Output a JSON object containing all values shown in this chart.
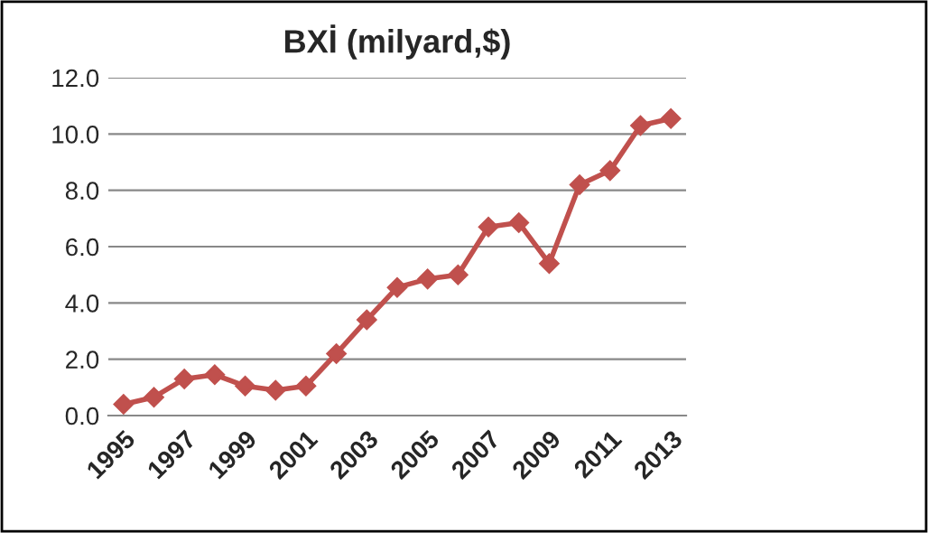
{
  "chart_data": {
    "type": "line",
    "title": "BXİ (milyard,$)",
    "categories": [
      "1995",
      null,
      "1997",
      null,
      "1999",
      null,
      "2001",
      null,
      "2003",
      null,
      "2005",
      null,
      "2007",
      null,
      "2009",
      null,
      "2011",
      null,
      "2013"
    ],
    "series": [
      {
        "color": "#c0504d",
        "values": [
          0.4,
          0.65,
          1.3,
          1.45,
          1.05,
          0.9,
          1.05,
          2.2,
          3.4,
          4.55,
          4.85,
          5.0,
          6.7,
          6.85,
          5.4,
          8.2,
          8.7,
          10.3,
          10.55
        ]
      }
    ],
    "ylim": [
      0,
      12
    ],
    "yticks": [
      {
        "value": 0,
        "label": "0.0"
      },
      {
        "value": 2,
        "label": "2.0"
      },
      {
        "value": 4,
        "label": "4.0"
      },
      {
        "value": 6,
        "label": "6.0"
      },
      {
        "value": 8,
        "label": "8.0"
      },
      {
        "value": 10,
        "label": "10.0"
      },
      {
        "value": 12,
        "label": "12.0"
      }
    ],
    "grid": "y",
    "marker": "diamond",
    "line_style": "solid",
    "legend": false
  }
}
